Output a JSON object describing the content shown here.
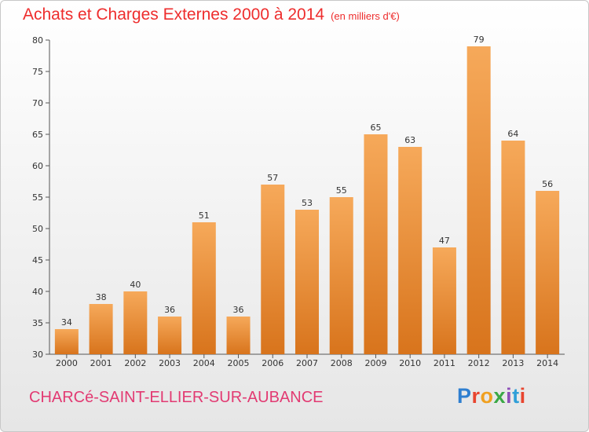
{
  "header": {
    "title": "Achats et Charges Externes 2000 à 2014",
    "subtitle": "(en milliers d'€)"
  },
  "footer": {
    "city": "CHARCé-SAINT-ELLIER-SUR-AUBANCE",
    "logo_letters": [
      "P",
      "r",
      "o",
      "x",
      "i",
      "t",
      "i"
    ]
  },
  "colors": {
    "bar_top": "#f6a95a",
    "bar_bottom": "#d8741c",
    "title": "#ee2d2d",
    "city": "#e23a72"
  },
  "chart_data": {
    "type": "bar",
    "title": "Achats et Charges Externes 2000 à 2014",
    "subtitle": "(en milliers d'€)",
    "categories": [
      "2000",
      "2001",
      "2002",
      "2003",
      "2004",
      "2005",
      "2006",
      "2007",
      "2008",
      "2009",
      "2010",
      "2011",
      "2012",
      "2013",
      "2014"
    ],
    "values": [
      34,
      38,
      40,
      36,
      51,
      36,
      57,
      53,
      55,
      65,
      63,
      47,
      79,
      64,
      56
    ],
    "ylim": [
      30,
      80
    ],
    "yticks": [
      30,
      35,
      40,
      45,
      50,
      55,
      60,
      65,
      70,
      75,
      80
    ],
    "grid": false,
    "data_labels": true
  }
}
